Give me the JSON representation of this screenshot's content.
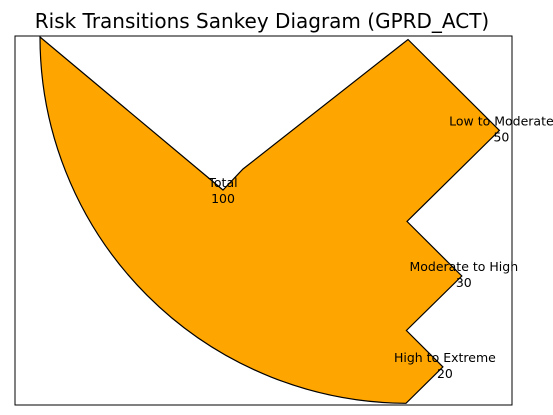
{
  "chart_data": {
    "type": "sankey",
    "title": "Risk Transitions Sankey Diagram (GPRD_ACT)",
    "xlabel": "",
    "ylabel": "",
    "grid": false,
    "legend": "none",
    "source": {
      "label": "Total",
      "value": 100
    },
    "flows": [
      {
        "label": "Low to Moderate",
        "value": 50
      },
      {
        "label": "Moderate to High",
        "value": 30
      },
      {
        "label": "High to Extreme",
        "value": 20
      }
    ],
    "colors": {
      "fill": "#FFA500",
      "edge": "#000000",
      "frame": "#000000",
      "background": "#FFFFFF"
    }
  }
}
